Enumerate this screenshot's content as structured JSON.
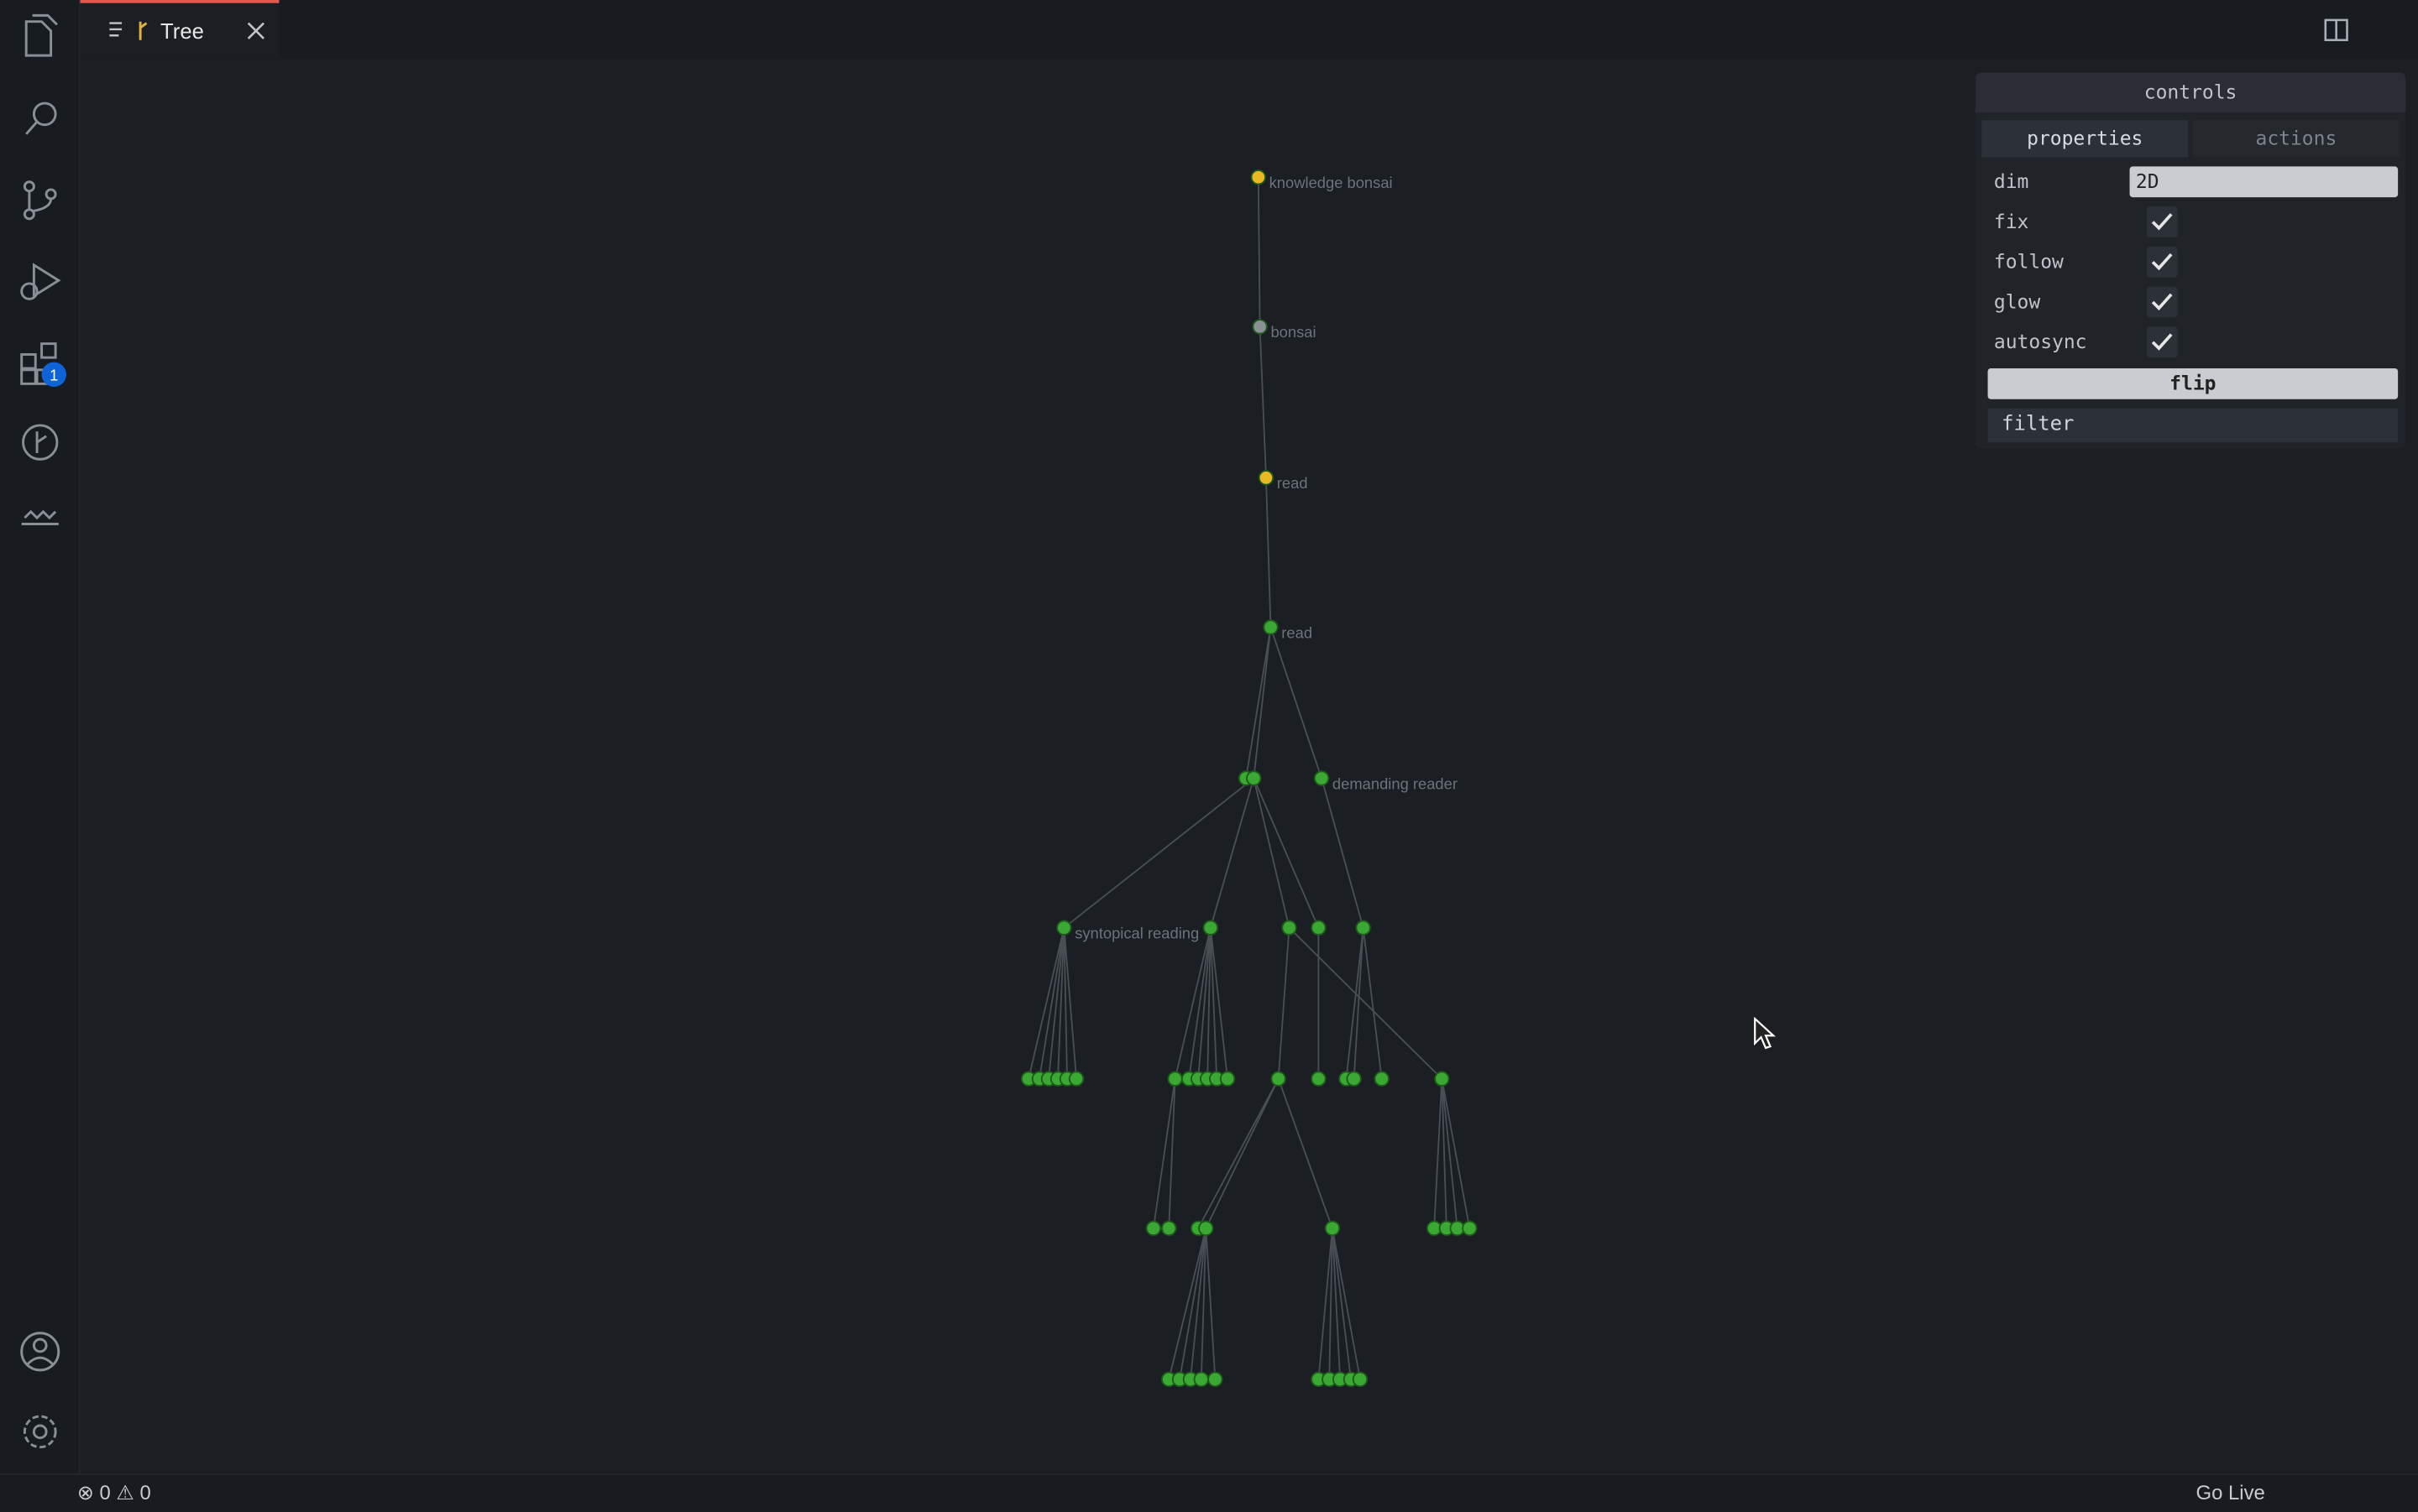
{
  "tab": {
    "title": "Tree"
  },
  "activity_bar": {
    "extensions_badge": "1"
  },
  "graph": {
    "labels": [
      "knowledge bonsai",
      "bonsai",
      "read",
      "read",
      "demanding reader",
      "syntopical reading"
    ]
  },
  "controls": {
    "title": "controls",
    "tabs": [
      "properties",
      "actions"
    ],
    "rows": [
      {
        "label": "dim",
        "value": "2D"
      },
      {
        "label": "fix"
      },
      {
        "label": "follow"
      },
      {
        "label": "glow"
      },
      {
        "label": "autosync"
      }
    ],
    "button": "flip",
    "filter": "filter"
  },
  "status_bar": {
    "errors": "0",
    "warnings": "0",
    "go_live": "Go Live"
  }
}
